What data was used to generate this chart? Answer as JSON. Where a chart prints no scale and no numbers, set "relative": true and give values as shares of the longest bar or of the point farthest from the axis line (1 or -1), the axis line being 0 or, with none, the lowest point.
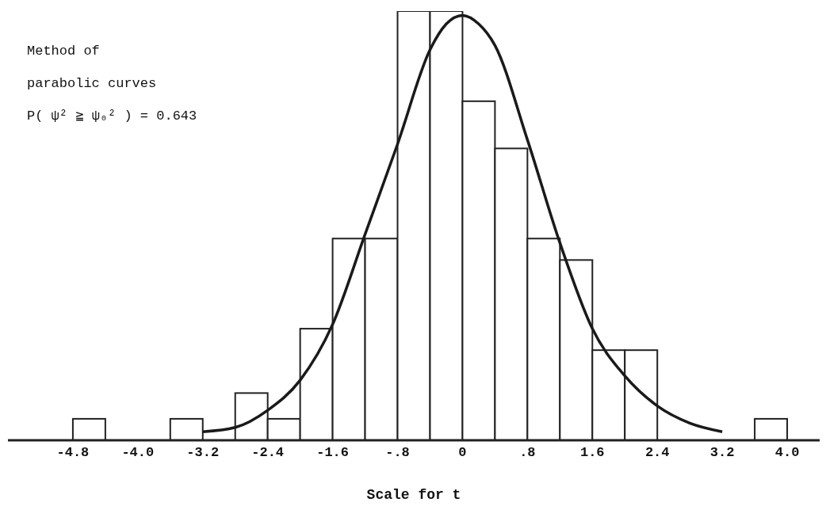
{
  "chart_data": {
    "type": "histogram",
    "relative": true,
    "xlabel": "Scale for t",
    "annotations": [
      "Method of",
      "parabolic curves",
      "P( ψ² ≧ ψ₀² ) = 0.643"
    ],
    "bins": [
      -4.8,
      -4.4,
      -4.0,
      -3.6,
      -3.2,
      -2.8,
      -2.4,
      -2.0,
      -1.6,
      -1.2,
      -0.8,
      -0.4,
      0,
      0.4,
      0.8,
      1.2,
      1.6,
      2.0,
      2.4,
      2.8,
      3.2,
      3.6,
      4.0
    ],
    "values": [
      0.05,
      0,
      0,
      0.05,
      0,
      0.11,
      0.05,
      0.26,
      0.47,
      0.47,
      1,
      1,
      0.79,
      0.68,
      0.47,
      0.42,
      0.21,
      0.21,
      0,
      0,
      0,
      0.05
    ],
    "color": "#ffffff",
    "series": [
      {
        "type": "line",
        "color": "#1a1a1a",
        "x": [
          -3.2,
          -2.8,
          -2.4,
          -2.0,
          -1.6,
          -1.2,
          -0.8,
          -0.4,
          -0.2,
          0,
          0.2,
          0.4,
          0.8,
          1.2,
          1.6,
          2.0,
          2.4,
          2.8,
          3.2
        ],
        "values": [
          0.02,
          0.03,
          0.07,
          0.14,
          0.27,
          0.48,
          0.69,
          0.91,
          0.97,
          0.99,
          0.97,
          0.92,
          0.7,
          0.46,
          0.26,
          0.15,
          0.08,
          0.04,
          0.02
        ]
      }
    ],
    "xlim": [
      -5.6,
      4.4
    ],
    "xticks": [
      {
        "value": -4.8,
        "label": "-4.8"
      },
      {
        "value": -4.0,
        "label": "-4.0"
      },
      {
        "value": -3.2,
        "label": "-3.2"
      },
      {
        "value": -2.4,
        "label": "-2.4"
      },
      {
        "value": -1.6,
        "label": "-1.6"
      },
      {
        "value": -0.8,
        "label": "-.8"
      },
      0,
      {
        "value": 0.8,
        "label": ".8"
      },
      1.6,
      2.4,
      3.2,
      {
        "value": 4.0,
        "label": "4.0"
      }
    ],
    "grid": false,
    "marker": "none",
    "line_style": "solid"
  }
}
